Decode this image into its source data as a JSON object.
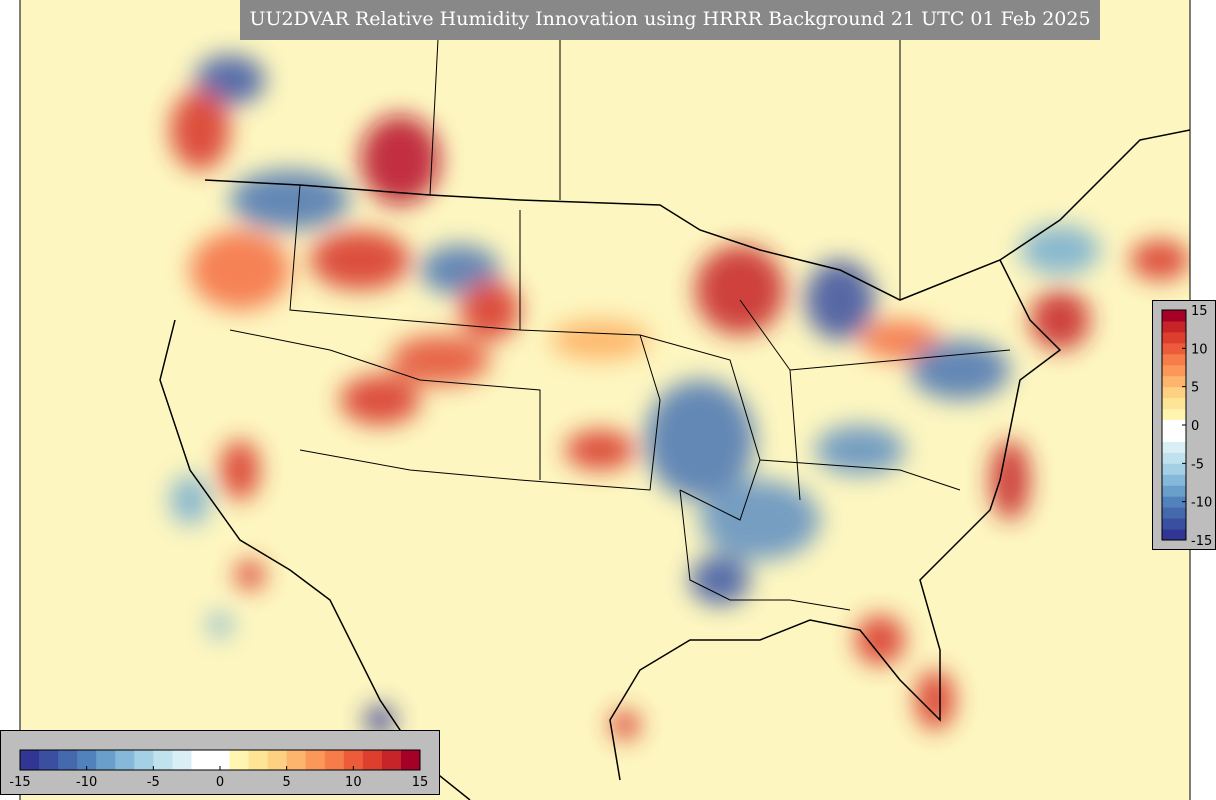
{
  "title": "UU2DVAR Relative Humidity Innovation using HRRR Background 21 UTC 01 Feb 2025",
  "colorbars": [
    {
      "orientation": "horizontal",
      "clim": [
        -15,
        15
      ],
      "ticks": [
        -15,
        -10,
        -5,
        0,
        5,
        10,
        15
      ],
      "colors": [
        "#313695",
        "#3a4fa0",
        "#4469ad",
        "#5182bb",
        "#6a9fcb",
        "#86b9d9",
        "#a3d0e5",
        "#bfe2ee",
        "#d9eff5",
        "#ffffff",
        "#ffffff",
        "#fff4b0",
        "#fee596",
        "#fed081",
        "#fdb46c",
        "#fb9859",
        "#f67c4a",
        "#ec5c3b",
        "#dd3e2e",
        "#c62428",
        "#a50026"
      ]
    },
    {
      "orientation": "vertical",
      "clim": [
        -15,
        15
      ],
      "ticks": [
        15,
        10,
        5,
        0,
        -5,
        -10,
        -15
      ],
      "colors": [
        "#313695",
        "#3a4fa0",
        "#4469ad",
        "#5182bb",
        "#6a9fcb",
        "#86b9d9",
        "#a3d0e5",
        "#bfe2ee",
        "#d9eff5",
        "#ffffff",
        "#ffffff",
        "#fff4b0",
        "#fee596",
        "#fed081",
        "#fdb46c",
        "#fb9859",
        "#f67c4a",
        "#ec5c3b",
        "#dd3e2e",
        "#c62428",
        "#a50026"
      ]
    }
  ]
}
